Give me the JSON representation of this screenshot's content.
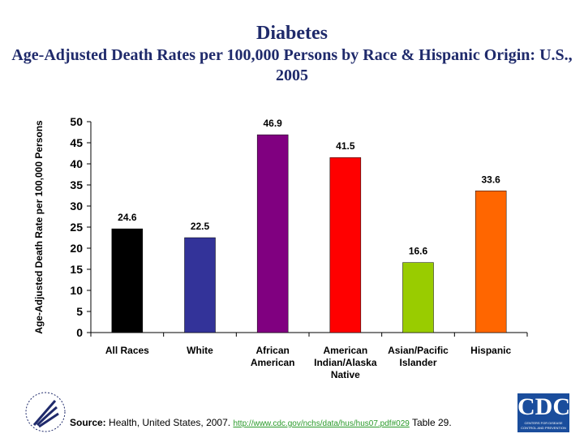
{
  "title": "Diabetes",
  "subtitle_line1": "Age-Adjusted Death Rates per 100,000 Persons by Race & Hispanic Origin: U.S.,",
  "subtitle_line2": "2005",
  "chart_data": {
    "type": "bar",
    "categories": [
      [
        "All Races"
      ],
      [
        "White"
      ],
      [
        "African",
        "American"
      ],
      [
        "American",
        "Indian/Alaska",
        "Native"
      ],
      [
        "Asian/Pacific",
        "Islander"
      ],
      [
        "Hispanic"
      ]
    ],
    "values": [
      24.6,
      22.5,
      46.9,
      41.5,
      16.6,
      33.6
    ],
    "data_labels": [
      "24.6",
      "22.5",
      "46.9",
      "41.5",
      "16.6",
      "33.6"
    ],
    "colors": [
      "#000000",
      "#333399",
      "#800080",
      "#FF0000",
      "#99CC00",
      "#FF6600"
    ],
    "ylabel": "Age-Adjusted Death Rate per 100,000 Persons",
    "ylim": [
      0,
      50
    ],
    "yticks": [
      "0",
      "5",
      "10",
      "15",
      "20",
      "25",
      "30",
      "35",
      "40",
      "45",
      "50"
    ],
    "grid": false,
    "legend": "none"
  },
  "footer": {
    "source_label": "Source:",
    "source_text": " Health, United States, 2007. ",
    "link": "http://www.cdc.gov/nchs/data/hus/hus07.pdf#029",
    "table": "  Table 29.",
    "hhs_logo": "Department of Health & Human Services USA",
    "cdc_logo": "CDC",
    "cdc_tagline": "CENTERS FOR DISEASE CONTROL AND PREVENTION"
  }
}
